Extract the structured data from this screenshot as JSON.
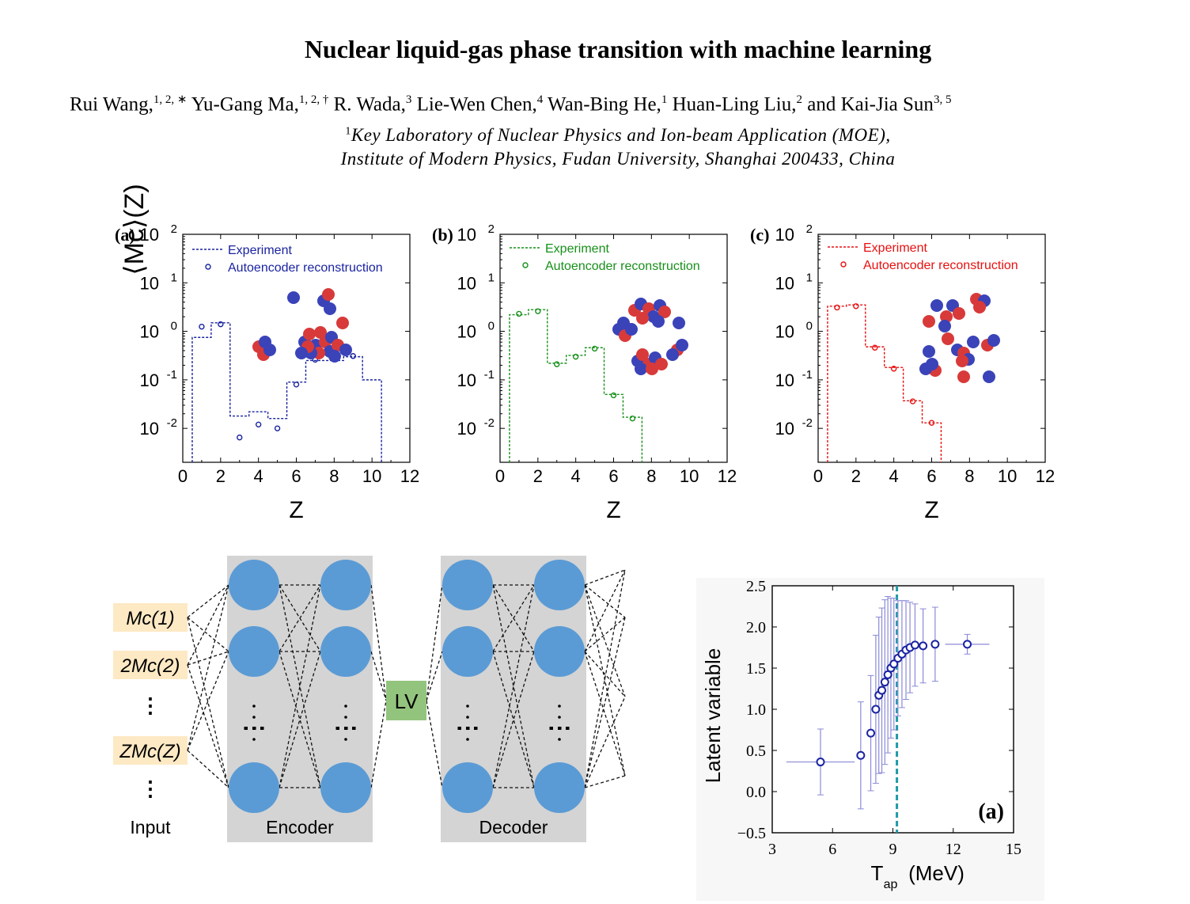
{
  "header": {
    "title": "Nuclear liquid-gas phase transition with machine learning",
    "authors": [
      {
        "name": "Rui Wang,",
        "sup": "1, 2, ∗"
      },
      {
        "name": "Yu-Gang Ma,",
        "sup": "1, 2, †"
      },
      {
        "name": "R. Wada,",
        "sup": "3"
      },
      {
        "name": "Lie-Wen Chen,",
        "sup": "4"
      },
      {
        "name": "Wan-Bing He,",
        "sup": "1"
      },
      {
        "name": "Huan-Ling Liu,",
        "sup": "2"
      },
      {
        "name": "and Kai-Jia Sun",
        "sup": "3, 5"
      }
    ],
    "affiliation_sup": "1",
    "affiliation_line1": "Key Laboratory of Nuclear Physics and Ion-beam Application (MOE),",
    "affiliation_line2": "Institute of Modern Physics, Fudan University, Shanghai 200433, China"
  },
  "colors": {
    "blue": "#1a23a0",
    "green": "#17901a",
    "red": "#e81010",
    "proton": "#d83a3a",
    "neutron": "#3a43b8",
    "node": "#5b9bd5",
    "panel": "#d4d4d4",
    "lv": "#93c47d",
    "input": "#fde9c4",
    "dashed": "#1f9aa8",
    "err": "#8a8ad8"
  },
  "chart_data": [
    {
      "type": "line",
      "panel_label": "(a)",
      "ylabel": "⟨Mc⟩(Z)",
      "xlabel": "Z",
      "xlim": [
        0,
        12
      ],
      "ylim": [
        0.002,
        100
      ],
      "yscale": "log",
      "xticks": [
        "0",
        "2",
        "4",
        "6",
        "8",
        "10",
        "12"
      ],
      "yticks": [
        "10",
        "10",
        "10",
        "10",
        "10"
      ],
      "ytick_exponents": [
        "2",
        "1",
        "0",
        "-1",
        "-2"
      ],
      "color": "#1a23a0",
      "legend": [
        "Experiment",
        "Autoencoder reconstruction"
      ],
      "series": [
        {
          "name": "Experiment",
          "style": "step",
          "x": [
            1,
            2,
            3,
            4,
            5,
            6,
            7,
            8,
            9,
            10
          ],
          "values": [
            0.75,
            1.5,
            0.018,
            0.022,
            0.016,
            0.09,
            0.25,
            0.25,
            0.3,
            0.1
          ]
        },
        {
          "name": "Autoencoder reconstruction",
          "style": "marker",
          "x": [
            1,
            2,
            3,
            4,
            5,
            6,
            7,
            9
          ],
          "values": [
            1.25,
            1.4,
            0.0065,
            0.012,
            0.01,
            0.08,
            0.26,
            0.31
          ]
        }
      ]
    },
    {
      "type": "line",
      "panel_label": "(b)",
      "xlabel": "Z",
      "xlim": [
        0,
        12
      ],
      "ylim": [
        0.002,
        100
      ],
      "yscale": "log",
      "xticks": [
        "0",
        "2",
        "4",
        "6",
        "8",
        "10",
        "12"
      ],
      "yticks": [
        "10",
        "10",
        "10",
        "10",
        "10"
      ],
      "ytick_exponents": [
        "2",
        "1",
        "0",
        "-1",
        "-2"
      ],
      "color": "#17901a",
      "legend": [
        "Experiment",
        "Autoencoder reconstruction"
      ],
      "series": [
        {
          "name": "Experiment",
          "style": "step",
          "x": [
            1,
            2,
            3,
            4,
            5,
            6,
            7
          ],
          "values": [
            2.2,
            2.8,
            0.22,
            0.32,
            0.46,
            0.05,
            0.017
          ]
        },
        {
          "name": "Autoencoder reconstruction",
          "style": "marker",
          "x": [
            1,
            2,
            3,
            4,
            5,
            6,
            7
          ],
          "values": [
            2.3,
            2.6,
            0.21,
            0.3,
            0.44,
            0.048,
            0.016
          ]
        }
      ]
    },
    {
      "type": "line",
      "panel_label": "(c)",
      "xlabel": "Z",
      "xlim": [
        0,
        12
      ],
      "ylim": [
        0.002,
        100
      ],
      "yscale": "log",
      "xticks": [
        "0",
        "2",
        "4",
        "6",
        "8",
        "10",
        "12"
      ],
      "yticks": [
        "10",
        "10",
        "10",
        "10",
        "10"
      ],
      "ytick_exponents": [
        "2",
        "1",
        "0",
        "-1",
        "-2"
      ],
      "color": "#e81010",
      "legend": [
        "Experiment",
        "Autoencoder reconstruction"
      ],
      "series": [
        {
          "name": "Experiment",
          "style": "step",
          "x": [
            1,
            2,
            3,
            4,
            5,
            6
          ],
          "values": [
            3.3,
            3.5,
            0.48,
            0.18,
            0.037,
            0.013
          ]
        },
        {
          "name": "Autoencoder reconstruction",
          "style": "marker",
          "x": [
            1,
            2,
            3,
            4,
            5,
            6
          ],
          "values": [
            3.1,
            3.3,
            0.46,
            0.17,
            0.036,
            0.013
          ]
        }
      ]
    },
    {
      "type": "scatter",
      "panel_label": "(a)",
      "xlabel": "T",
      "xlabel_sub": "ap",
      "xlabel_unit": "(MeV)",
      "ylabel": "Latent variable",
      "xlim": [
        3,
        15
      ],
      "ylim": [
        -0.5,
        2.5
      ],
      "xticks": [
        "3",
        "6",
        "9",
        "12",
        "15"
      ],
      "yticks": [
        "2.5",
        "2.0",
        "1.5",
        "1.0",
        "0.5",
        "0.0",
        "−0.5"
      ],
      "vline_x": 9.2,
      "points": [
        {
          "x": 5.4,
          "y": 0.36,
          "xerr": 1.7,
          "yerr": 0.4
        },
        {
          "x": 7.4,
          "y": 0.44,
          "yerr": 0.65
        },
        {
          "x": 7.9,
          "y": 0.71,
          "yerr": 0.7
        },
        {
          "x": 8.15,
          "y": 1.0,
          "yerr": 0.9
        },
        {
          "x": 8.3,
          "y": 1.17,
          "yerr": 0.95
        },
        {
          "x": 8.45,
          "y": 1.23,
          "yerr": 1.0
        },
        {
          "x": 8.6,
          "y": 1.33,
          "yerr": 1.0
        },
        {
          "x": 8.75,
          "y": 1.42,
          "yerr": 0.95
        },
        {
          "x": 8.9,
          "y": 1.5,
          "yerr": 0.85
        },
        {
          "x": 9.05,
          "y": 1.55,
          "yerr": 0.8
        },
        {
          "x": 9.25,
          "y": 1.62,
          "yerr": 0.7
        },
        {
          "x": 9.45,
          "y": 1.67,
          "yerr": 0.65
        },
        {
          "x": 9.65,
          "y": 1.72,
          "yerr": 0.6
        },
        {
          "x": 9.85,
          "y": 1.75,
          "yerr": 0.55
        },
        {
          "x": 10.1,
          "y": 1.78,
          "yerr": 0.5
        },
        {
          "x": 10.5,
          "y": 1.77,
          "yerr": 0.45
        },
        {
          "x": 11.1,
          "y": 1.79,
          "yerr": 0.45
        },
        {
          "x": 12.7,
          "y": 1.79,
          "xerr": 1.1,
          "yerr": 0.12
        }
      ]
    }
  ],
  "diagram": {
    "inputs": [
      "Mc(1)",
      "2Mc(2)",
      "⋮",
      "ZMc(Z)",
      "⋮"
    ],
    "input_label": "Input",
    "encoder_label": "Encoder",
    "decoder_label": "Decoder",
    "lv_label": "LV",
    "dots": "⋮"
  }
}
